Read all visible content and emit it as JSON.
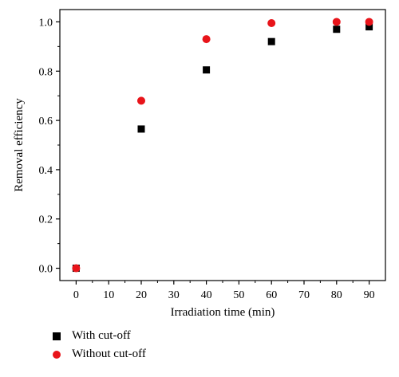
{
  "chart_data": {
    "type": "scatter",
    "xlabel": "Irradiation time (min)",
    "ylabel": "Removal efficiency",
    "xlim": [
      -5,
      95
    ],
    "ylim": [
      -0.05,
      1.05
    ],
    "xticks": [
      0,
      10,
      20,
      30,
      40,
      50,
      60,
      70,
      80,
      90
    ],
    "xtick_labels": [
      "0",
      "10",
      "20",
      "30",
      "40",
      "50",
      "60",
      "70",
      "80",
      "90"
    ],
    "yticks": [
      0.0,
      0.2,
      0.4,
      0.6,
      0.8,
      1.0
    ],
    "ytick_labels": [
      "0.0",
      "0.2",
      "0.4",
      "0.6",
      "0.8",
      "1.0"
    ],
    "grid": false,
    "legend_position": "bottom-left",
    "series": [
      {
        "name": "With cut-off",
        "marker": "square",
        "color": "#000000",
        "x": [
          0,
          20,
          40,
          60,
          80,
          90
        ],
        "y": [
          0.0,
          0.565,
          0.805,
          0.92,
          0.97,
          0.98
        ]
      },
      {
        "name": "Without cut-off",
        "marker": "circle",
        "color": "#e8141a",
        "x": [
          0,
          20,
          40,
          60,
          80,
          90
        ],
        "y": [
          0.0,
          0.68,
          0.93,
          0.995,
          1.0,
          1.0
        ]
      }
    ]
  }
}
